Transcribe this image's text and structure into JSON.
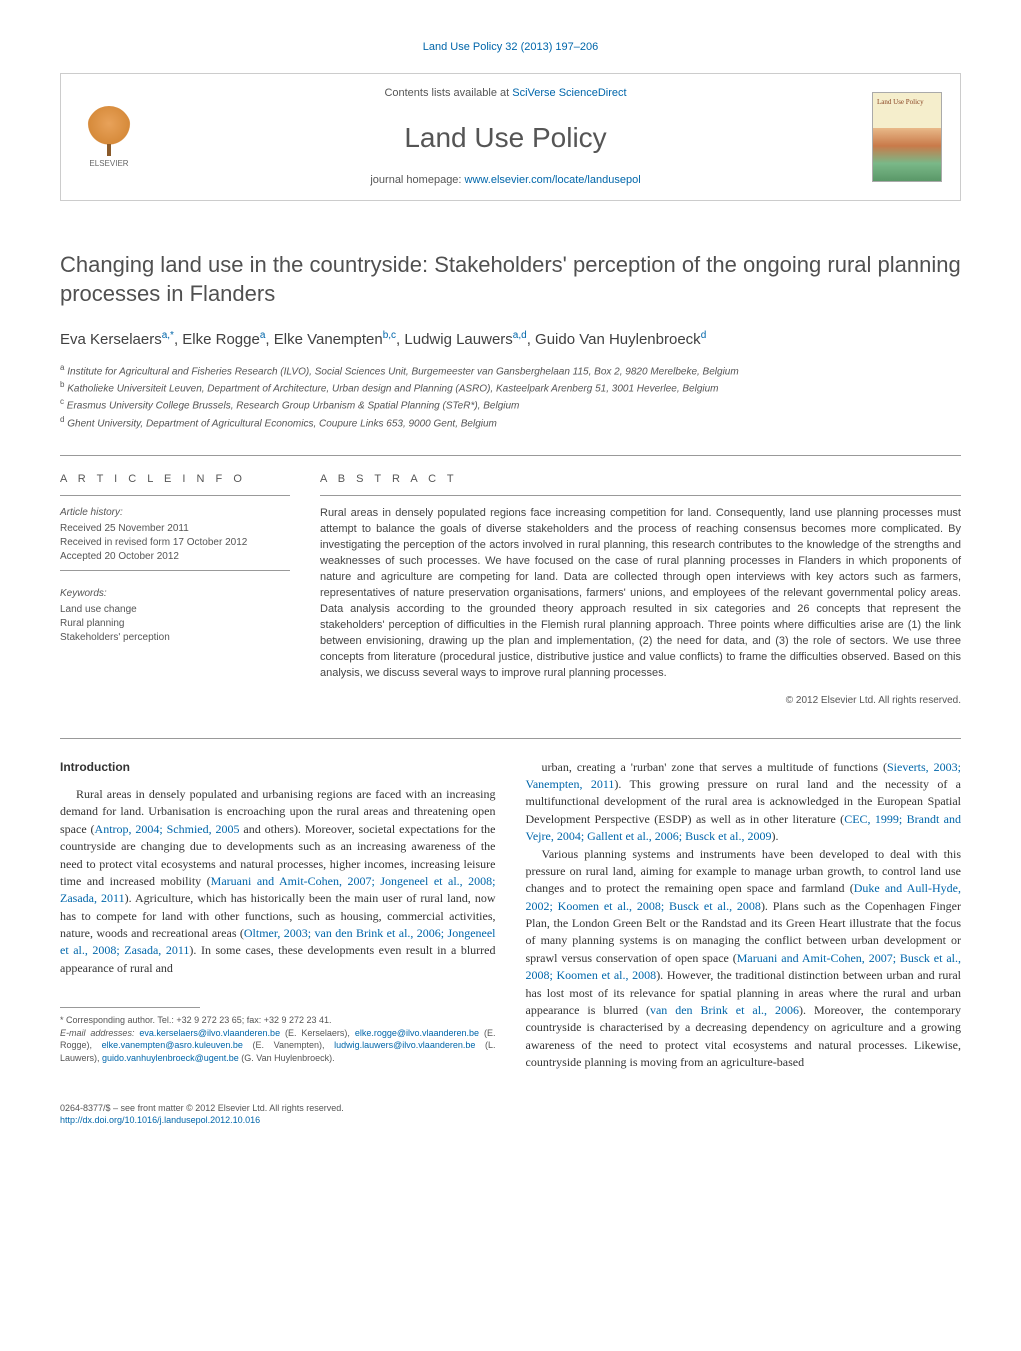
{
  "journal_ref": "Land Use Policy 32 (2013) 197–206",
  "header": {
    "contents_prefix": "Contents lists available at ",
    "contents_link": "SciVerse ScienceDirect",
    "journal_name": "Land Use Policy",
    "homepage_prefix": "journal homepage: ",
    "homepage_link": "www.elsevier.com/locate/landusepol",
    "elsevier_label": "ELSEVIER",
    "cover_text": "Land Use Policy"
  },
  "title": "Changing land use in the countryside: Stakeholders' perception of the ongoing rural planning processes in Flanders",
  "authors_html": "Eva Kerselaers<sup>a,*</sup>, Elke Rogge<sup>a</sup>, Elke Vanempten<sup>b,c</sup>, Ludwig Lauwers<sup>a,d</sup>, Guido Van Huylenbroeck<sup>d</sup>",
  "affiliations": [
    "a Institute for Agricultural and Fisheries Research (ILVO), Social Sciences Unit, Burgemeester van Gansberghelaan 115, Box 2, 9820 Merelbeke, Belgium",
    "b Katholieke Universiteit Leuven, Department of Architecture, Urban design and Planning (ASRO), Kasteelpark Arenberg 51, 3001 Heverlee, Belgium",
    "c Erasmus University College Brussels, Research Group Urbanism & Spatial Planning (STeR*), Belgium",
    "d Ghent University, Department of Agricultural Economics, Coupure Links 653, 9000 Gent, Belgium"
  ],
  "info": {
    "heading": "a r t i c l e   i n f o",
    "history_label": "Article history:",
    "history": [
      "Received 25 November 2011",
      "Received in revised form 17 October 2012",
      "Accepted 20 October 2012"
    ],
    "keywords_label": "Keywords:",
    "keywords": [
      "Land use change",
      "Rural planning",
      "Stakeholders' perception"
    ]
  },
  "abstract": {
    "heading": "a b s t r a c t",
    "text": "Rural areas in densely populated regions face increasing competition for land. Consequently, land use planning processes must attempt to balance the goals of diverse stakeholders and the process of reaching consensus becomes more complicated. By investigating the perception of the actors involved in rural planning, this research contributes to the knowledge of the strengths and weaknesses of such processes. We have focused on the case of rural planning processes in Flanders in which proponents of nature and agriculture are competing for land. Data are collected through open interviews with key actors such as farmers, representatives of nature preservation organisations, farmers' unions, and employees of the relevant governmental policy areas. Data analysis according to the grounded theory approach resulted in six categories and 26 concepts that represent the stakeholders' perception of difficulties in the Flemish rural planning approach. Three points where difficulties arise are (1) the link between envisioning, drawing up the plan and implementation, (2) the need for data, and (3) the role of sectors. We use three concepts from literature (procedural justice, distributive justice and value conflicts) to frame the difficulties observed. Based on this analysis, we discuss several ways to improve rural planning processes.",
    "copyright": "© 2012 Elsevier Ltd. All rights reserved."
  },
  "body": {
    "section_heading": "Introduction",
    "col1_p1_pre": "Rural areas in densely populated and urbanising regions are faced with an increasing demand for land. Urbanisation is encroaching upon the rural areas and threatening open space (",
    "col1_p1_cite1": "Antrop, 2004; Schmied, 2005",
    "col1_p1_mid1": " and others). Moreover, societal expectations for the countryside are changing due to developments such as an increasing awareness of the need to protect vital ecosystems and natural processes, higher incomes, increasing leisure time and increased mobility (",
    "col1_p1_cite2": "Maruani and Amit-Cohen, 2007; Jongeneel et al., 2008; Zasada, 2011",
    "col1_p1_mid2": "). Agriculture, which has historically been the main user of rural land, now has to compete for land with other functions, such as housing, commercial activities, nature, woods and recreational areas (",
    "col1_p1_cite3": "Oltmer, 2003; van den Brink et al., 2006; Jongeneel et al., 2008; Zasada, 2011",
    "col1_p1_post": "). In some cases, these developments even result in a blurred appearance of rural and",
    "col2_p1_pre": "urban, creating a 'rurban' zone that serves a multitude of functions (",
    "col2_p1_cite1": "Sieverts, 2003; Vanempten, 2011",
    "col2_p1_mid1": "). This growing pressure on rural land and the necessity of a multifunctional development of the rural area is acknowledged in the European Spatial Development Perspective (ESDP) as well as in other literature (",
    "col2_p1_cite2": "CEC, 1999; Brandt and Vejre, 2004; Gallent et al., 2006; Busck et al., 2009",
    "col2_p1_post": ").",
    "col2_p2_pre": "Various planning systems and instruments have been developed to deal with this pressure on rural land, aiming for example to manage urban growth, to control land use changes and to protect the remaining open space and farmland (",
    "col2_p2_cite1": "Duke and Aull-Hyde, 2002; Koomen et al., 2008; Busck et al., 2008",
    "col2_p2_mid1": "). Plans such as the Copenhagen Finger Plan, the London Green Belt or the Randstad and its Green Heart illustrate that the focus of many planning systems is on managing the conflict between urban development or sprawl versus conservation of open space (",
    "col2_p2_cite2": "Maruani and Amit-Cohen, 2007; Busck et al., 2008; Koomen et al., 2008",
    "col2_p2_mid2": "). However, the traditional distinction between urban and rural has lost most of its relevance for spatial planning in areas where the rural and urban appearance is blurred (",
    "col2_p2_cite3": "van den Brink et al., 2006",
    "col2_p2_post": "). Moreover, the contemporary countryside is characterised by a decreasing dependency on agriculture and a growing awareness of the need to protect vital ecosystems and natural processes. Likewise, countryside planning is moving from an agriculture-based"
  },
  "footnote": {
    "corresponding": "* Corresponding author. Tel.: +32 9 272 23 65; fax: +32 9 272 23 41.",
    "email_label": "E-mail addresses: ",
    "emails": [
      {
        "addr": "eva.kerselaers@ilvo.vlaanderen.be",
        "name": " (E. Kerselaers),"
      },
      {
        "addr": "elke.rogge@ilvo.vlaanderen.be",
        "name": " (E. Rogge), "
      },
      {
        "addr": "elke.vanempten@asro.kuleuven.be",
        "name": ""
      },
      {
        "addr": "",
        "name": "(E. Vanempten), "
      },
      {
        "addr": "ludwig.lauwers@ilvo.vlaanderen.be",
        "name": " (L. Lauwers),"
      },
      {
        "addr": "guido.vanhuylenbroeck@ugent.be",
        "name": " (G. Van Huylenbroeck)."
      }
    ]
  },
  "bottom": {
    "issn": "0264-8377/$ – see front matter © 2012 Elsevier Ltd. All rights reserved.",
    "doi": "http://dx.doi.org/10.1016/j.landusepol.2012.10.016"
  },
  "colors": {
    "link": "#0066aa",
    "text": "#333333",
    "muted": "#555555",
    "border": "#cccccc"
  },
  "typography": {
    "title_fontsize": 22,
    "journal_name_fontsize": 28,
    "body_fontsize": 12,
    "abstract_fontsize": 11,
    "footnote_fontsize": 9
  }
}
